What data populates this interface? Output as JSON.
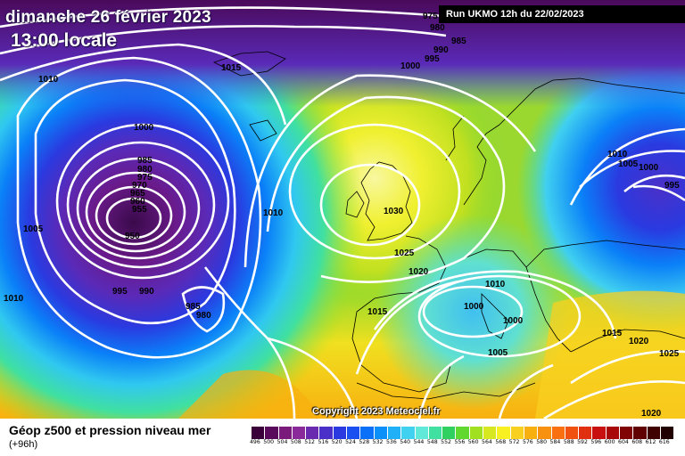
{
  "header": {
    "date": "dimanche 26 février 2023",
    "local_time": "13:00 locale"
  },
  "run_info": "Run UKMO 12h du 22/02/2023",
  "copyright": "Copyright 2023 Meteociel.fr",
  "legend": {
    "title": "Géop z500 et pression niveau mer",
    "forecast_hours": "(+96h)",
    "scale_values": [
      "496",
      "500",
      "504",
      "508",
      "512",
      "516",
      "520",
      "524",
      "528",
      "532",
      "536",
      "540",
      "544",
      "548",
      "552",
      "556",
      "560",
      "564",
      "568",
      "572",
      "576",
      "580",
      "584",
      "588",
      "592",
      "596",
      "600",
      "604",
      "608",
      "612",
      "616"
    ],
    "scale_colors": [
      "#3a003a",
      "#5a0a5a",
      "#7a1a7a",
      "#8a2a9a",
      "#6a2ab0",
      "#4a30c8",
      "#2a3ae0",
      "#1a50f0",
      "#0a70f8",
      "#0a90f8",
      "#20b0f8",
      "#40d0f0",
      "#60e8d8",
      "#40e0a0",
      "#30d060",
      "#60d830",
      "#a0e020",
      "#d8e820",
      "#f8f020",
      "#f8d020",
      "#f8b010",
      "#f89010",
      "#f87010",
      "#f05010",
      "#e03010",
      "#c81010",
      "#a80808",
      "#800404",
      "#600202",
      "#400101",
      "#200000"
    ]
  },
  "isobar_labels": [
    {
      "text": "1010"
    },
    {
      "text": "1000"
    },
    {
      "text": "985"
    },
    {
      "text": "980"
    },
    {
      "text": "975"
    },
    {
      "text": "970"
    },
    {
      "text": "965"
    },
    {
      "text": "960"
    },
    {
      "text": "955"
    },
    {
      "text": "950"
    },
    {
      "text": "1005"
    },
    {
      "text": "1010"
    },
    {
      "text": "995"
    },
    {
      "text": "990"
    },
    {
      "text": "985"
    },
    {
      "text": "980"
    },
    {
      "text": "1015"
    },
    {
      "text": "1000"
    },
    {
      "text": "995"
    },
    {
      "text": "990"
    },
    {
      "text": "985"
    },
    {
      "text": "980"
    },
    {
      "text": "975"
    },
    {
      "text": "1010"
    },
    {
      "text": "1030"
    },
    {
      "text": "1025"
    },
    {
      "text": "1020"
    },
    {
      "text": "1010"
    },
    {
      "text": "1015"
    },
    {
      "text": "1000"
    },
    {
      "text": "1000"
    },
    {
      "text": "1005"
    },
    {
      "text": "1010"
    },
    {
      "text": "1005"
    },
    {
      "text": "1000"
    },
    {
      "text": "995"
    },
    {
      "text": "1015"
    },
    {
      "text": "1020"
    },
    {
      "text": "1025"
    },
    {
      "text": "1020"
    }
  ]
}
